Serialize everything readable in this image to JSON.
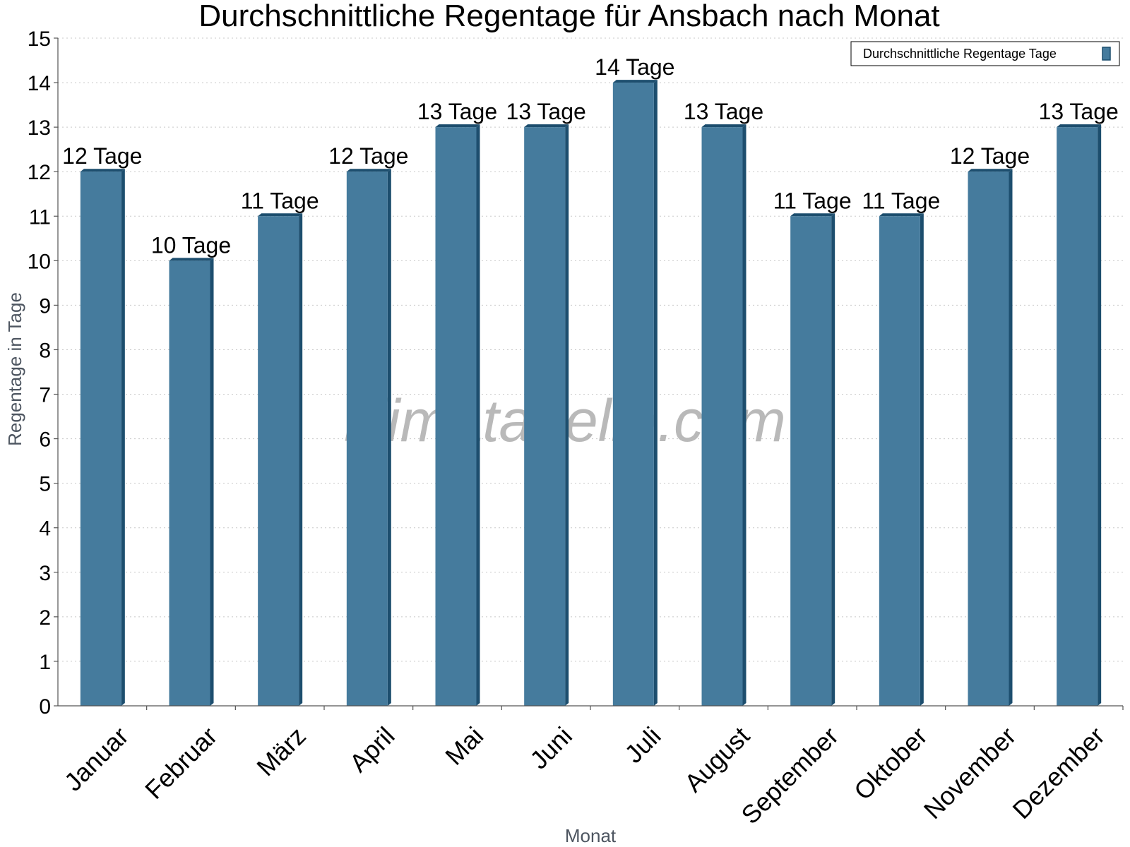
{
  "chart_data": {
    "type": "bar",
    "title": "Durchschnittliche Regentage für Ansbach nach Monat",
    "xlabel": "Monat",
    "ylabel": "Regentage in Tage",
    "ylim": [
      0,
      15
    ],
    "yticks": [
      0,
      1,
      2,
      3,
      4,
      5,
      6,
      7,
      8,
      9,
      10,
      11,
      12,
      13,
      14,
      15
    ],
    "grid": true,
    "legend_position": "top-right",
    "categories": [
      "Januar",
      "Februar",
      "März",
      "April",
      "Mai",
      "Juni",
      "Juli",
      "August",
      "September",
      "Oktober",
      "November",
      "Dezember"
    ],
    "series": [
      {
        "name": "Durchschnittliche Regentage Tage",
        "color": "#457b9d",
        "dark_color": "#1d4e6e",
        "values": [
          12,
          10,
          11,
          12,
          13,
          13,
          14,
          13,
          11,
          11,
          12,
          13
        ],
        "data_labels": [
          "12 Tage",
          "10 Tage",
          "11 Tage",
          "12 Tage",
          "13 Tage",
          "13 Tage",
          "14 Tage",
          "13 Tage",
          "11 Tage",
          "11 Tage",
          "12 Tage",
          "13 Tage"
        ]
      }
    ],
    "watermark": "klimatabelle.com"
  }
}
